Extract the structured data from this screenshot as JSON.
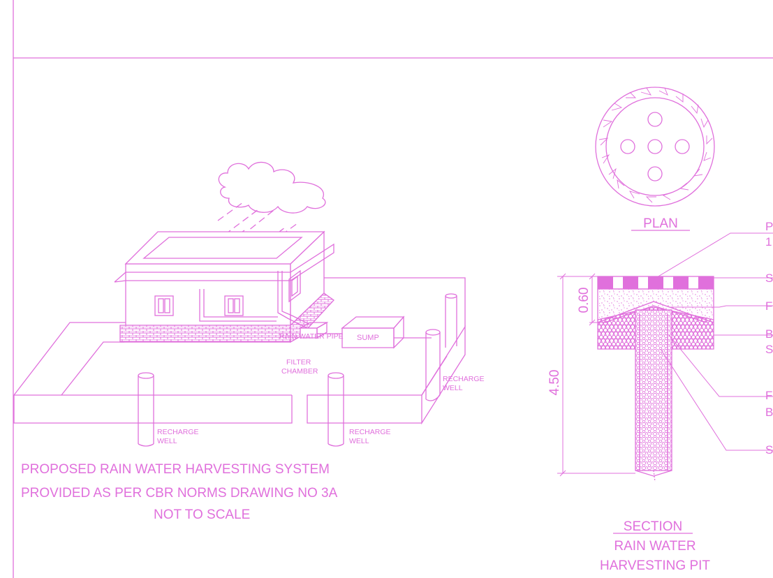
{
  "colors": {
    "line": "#e070dc",
    "fill": "#e070dc",
    "background": "#ffffff"
  },
  "isometric_view": {
    "labels": {
      "rain_water_pipe": "RAIN WATER PIPE",
      "filter_chamber_line1": "FILTER",
      "filter_chamber_line2": "CHAMBER",
      "sump": "SUMP",
      "recharge_well_line1": "RECHARGE",
      "recharge_well_line2": "WELL"
    },
    "title_lines": [
      "PROPOSED RAIN WATER HARVESTING SYSTEM",
      "PROVIDED AS PER CBR NORMS DRAWING NO 3A",
      "NOT TO SCALE"
    ]
  },
  "plan_view": {
    "title": "PLAN"
  },
  "section_view": {
    "title": "SECTION",
    "dimension_total": "4.50",
    "dimension_top": "0.60",
    "callouts": [
      {
        "line1": "P",
        "line2": "1"
      },
      {
        "line1": "S",
        "line2": ""
      },
      {
        "line1": "F",
        "line2": ""
      },
      {
        "line1": "B",
        "line2": "S"
      },
      {
        "line1": "F",
        "line2": "B"
      },
      {
        "line1": "S",
        "line2": ""
      }
    ],
    "caption_lines": [
      "RAIN WATER",
      "HARVESTING PIT"
    ]
  }
}
